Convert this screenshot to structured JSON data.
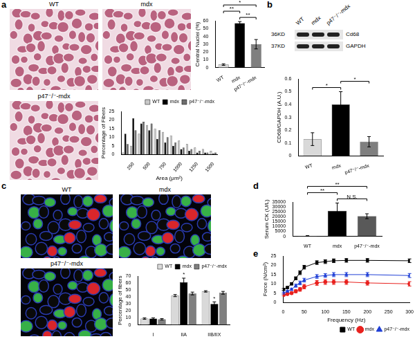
{
  "figure": {
    "panel_labels": [
      "a",
      "b",
      "c",
      "d",
      "e"
    ],
    "micrographs_a": [
      "WT",
      "mdx",
      "p47⁻/⁻-mdx"
    ],
    "micrographs_c": [
      "WT",
      "mdx",
      "p47⁻/⁻-mdx"
    ],
    "blot": {
      "lanes": [
        "WT",
        "mdx",
        "p47⁻/⁻-mdx"
      ],
      "bands": [
        {
          "size": "36KD",
          "protein": "Cd68"
        },
        {
          "size": "37KD",
          "protein": "GAPDH"
        }
      ]
    }
  },
  "chart_data": [
    {
      "type": "bar",
      "y_label": "Central Nuclei (%)",
      "categories": [
        "WT",
        "mdx",
        "p47⁻/⁻-mdx"
      ],
      "values": [
        4,
        57,
        30
      ],
      "errors": [
        1,
        2,
        6
      ],
      "colors": [
        "#d9d9d9",
        "#000000",
        "#7f7f7f"
      ],
      "ylim": [
        0,
        60
      ],
      "yticks": [
        0,
        10,
        20,
        30,
        40,
        50,
        60
      ],
      "grid": false,
      "annotations": [
        {
          "pair": [
            "mdx",
            "p47⁻/⁻-mdx"
          ],
          "label": "**"
        },
        {
          "pair": [
            "WT",
            "mdx"
          ],
          "label": "**"
        },
        {
          "pair": [
            "WT",
            "p47⁻/⁻-mdx"
          ],
          "label": "*"
        }
      ]
    },
    {
      "type": "bar",
      "x_label": "Area (μm²)",
      "y_label": "Percentage of Fibers",
      "categories": [
        null,
        "250",
        null,
        "500",
        null,
        "750",
        null,
        "1000",
        null,
        "1250",
        null,
        "1500"
      ],
      "series": [
        {
          "name": "WT",
          "color": "#c8c8c8",
          "values": [
            1,
            5,
            12,
            17,
            15,
            13,
            11,
            8,
            6,
            4,
            3,
            2
          ]
        },
        {
          "name": "mdx",
          "color": "#000000",
          "values": [
            12,
            21,
            18,
            14,
            9,
            7,
            5,
            3,
            2,
            1,
            1,
            0.5
          ]
        },
        {
          "name": "p47⁻/⁻-mdx",
          "color": "#6e6e6e",
          "values": [
            6,
            14,
            19,
            18,
            14,
            10,
            7,
            4,
            3,
            2,
            1,
            1
          ]
        }
      ],
      "ylim": [
        0,
        25
      ],
      "yticks": [
        0,
        5,
        10,
        15,
        20,
        25
      ],
      "grid": false,
      "legend": "top"
    },
    {
      "type": "bar",
      "y_label": "CD68/GAPDH (A.U.)",
      "categories": [
        "WT",
        "mdx",
        "p47⁻/⁻-mdx"
      ],
      "values": [
        0.13,
        0.4,
        0.11
      ],
      "errors": [
        0.05,
        0.1,
        0.04
      ],
      "colors": [
        "#d9d9d9",
        "#000000",
        "#7f7f7f"
      ],
      "ylim": [
        0,
        0.6
      ],
      "yticks": [
        0,
        0.1,
        0.2,
        0.3,
        0.4,
        0.5,
        0.6
      ],
      "grid": false,
      "annotations": [
        {
          "pair": [
            "WT",
            "mdx"
          ],
          "label": "*"
        },
        {
          "pair": [
            "mdx",
            "p47⁻/⁻-mdx"
          ],
          "label": "*"
        }
      ]
    },
    {
      "type": "bar",
      "y_label": "Percentage of fibers",
      "categories": [
        "I",
        "IIA",
        "IIB/IIX"
      ],
      "series": [
        {
          "name": "WT",
          "color": "#d9d9d9",
          "values": [
            9,
            42,
            48
          ],
          "errors": [
            1,
            1.5,
            1
          ]
        },
        {
          "name": "mdx",
          "color": "#000000",
          "values": [
            9,
            61,
            30
          ],
          "errors": [
            1,
            6,
            3
          ]
        },
        {
          "name": "p47⁻/⁻-mdx",
          "color": "#7f7f7f",
          "values": [
            8,
            45,
            46
          ],
          "errors": [
            1,
            2,
            2
          ]
        }
      ],
      "ylim": [
        0,
        70
      ],
      "yticks": [
        0,
        10,
        20,
        30,
        40,
        50,
        60,
        70
      ],
      "grid": false,
      "legend": "top",
      "annotations": [
        {
          "category": "IIA",
          "series": "mdx",
          "label": "*"
        },
        {
          "category": "IIB/IIX",
          "series": "mdx",
          "label": "*"
        }
      ]
    },
    {
      "type": "bar",
      "y_label": "Serum CK (U/L)",
      "categories": [
        "WT",
        "mdx",
        "p47⁻/⁻-mdx"
      ],
      "values": [
        500,
        26000,
        20500
      ],
      "errors": [
        150,
        8000,
        2500
      ],
      "colors": [
        "#d9d9d9",
        "#000000",
        "#595959"
      ],
      "ylim": [
        0,
        35000
      ],
      "yticks": [
        0,
        5000,
        10000,
        15000,
        20000,
        25000,
        30000,
        35000
      ],
      "grid": false,
      "annotations": [
        {
          "pair": [
            "mdx",
            "p47⁻/⁻-mdx"
          ],
          "label": "N.S."
        },
        {
          "pair": [
            "WT",
            "mdx"
          ],
          "label": "**"
        },
        {
          "pair": [
            "WT",
            "p47⁻/⁻-mdx"
          ],
          "label": "**"
        }
      ]
    },
    {
      "type": "line",
      "x_label": "Frequency (Hz)",
      "y_label": "Force (N/cm²)",
      "x": [
        1,
        10,
        20,
        30,
        40,
        50,
        80,
        100,
        120,
        150,
        200,
        300
      ],
      "series": [
        {
          "name": "WT",
          "color": "#000000",
          "marker": "square",
          "values": [
            7,
            8,
            10,
            13,
            16,
            19,
            21.5,
            22,
            22.5,
            22.7,
            22.7,
            22.5
          ],
          "errors": [
            0.5,
            0.5,
            0.6,
            0.8,
            1,
            1,
            1,
            1,
            1,
            1,
            1,
            1
          ]
        },
        {
          "name": "mdx",
          "color": "#e8211e",
          "marker": "circle",
          "values": [
            4,
            4.5,
            5,
            6,
            7,
            8.5,
            10.5,
            11,
            11,
            11,
            10.5,
            10
          ],
          "errors": [
            0.5,
            0.5,
            0.6,
            0.8,
            1,
            1.2,
            1.3,
            1.3,
            1.3,
            1.3,
            1.2,
            1.2
          ]
        },
        {
          "name": "p47⁻/⁻-mdx",
          "color": "#1f3fd6",
          "marker": "triangle",
          "values": [
            5,
            6,
            7,
            9,
            10.5,
            12,
            14,
            14.5,
            15,
            15,
            15,
            14.5
          ],
          "errors": [
            0.5,
            0.5,
            0.6,
            0.8,
            1,
            1,
            1,
            1,
            1.1,
            1.1,
            1.1,
            1.1
          ]
        }
      ],
      "xlim": [
        0,
        300
      ],
      "xticks": [
        0,
        50,
        100,
        150,
        200,
        250,
        300
      ],
      "ylim": [
        0,
        25
      ],
      "yticks": [
        0,
        5,
        10,
        15,
        20,
        25
      ],
      "grid": false,
      "legend": "bottom"
    }
  ]
}
